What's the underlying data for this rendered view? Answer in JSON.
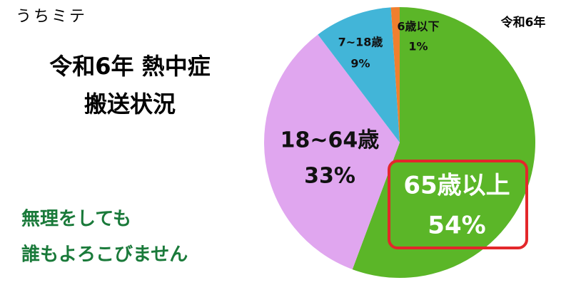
{
  "brand": "うちミテ",
  "chart_data": {
    "type": "pie",
    "title": [
      "令和6年 熱中症",
      "搬送状況"
    ],
    "subtitle": "令和6年",
    "note": [
      "無理をしても",
      "誰もよろこびません"
    ],
    "categories": [
      "65歳以上",
      "18~64歳",
      "7~18歳",
      "6歳以下"
    ],
    "values": [
      54,
      33,
      9,
      1
    ],
    "value_labels": [
      "54%",
      "33%",
      "9%",
      "1%"
    ],
    "colors": [
      "#5bb628",
      "#e0a6ef",
      "#42b5d8",
      "#f07f2e"
    ]
  }
}
